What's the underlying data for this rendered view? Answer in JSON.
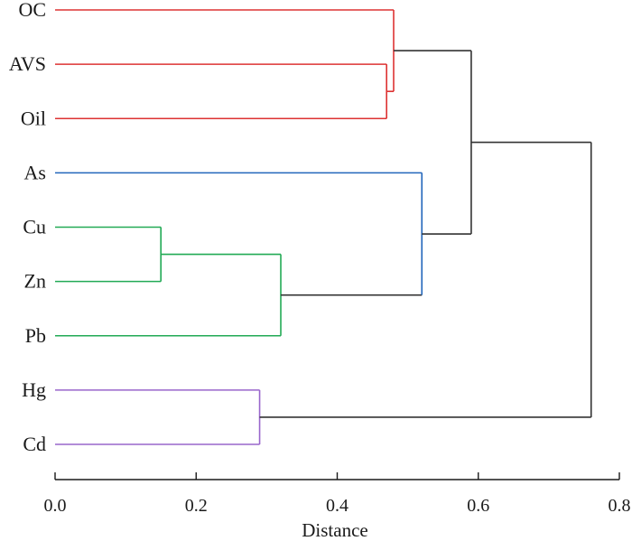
{
  "chart_data": {
    "type": "dendrogram",
    "orientation": "horizontal",
    "xlabel": "Distance",
    "xlim": [
      0.0,
      0.8
    ],
    "xticks": [
      0.0,
      0.2,
      0.4,
      0.6,
      0.8
    ],
    "xtick_labels": [
      "0.0",
      "0.2",
      "0.4",
      "0.6",
      "0.8"
    ],
    "leaves": [
      "OC",
      "AVS",
      "Oil",
      "As",
      "Cu",
      "Zn",
      "Pb",
      "Hg",
      "Cd"
    ],
    "clusters": [
      {
        "id": "c1",
        "children": [
          "Cu",
          "Zn"
        ],
        "distance": 0.15,
        "color": "#22aa55"
      },
      {
        "id": "c2",
        "children": [
          "c1",
          "Pb"
        ],
        "distance": 0.32,
        "color": "#22aa55"
      },
      {
        "id": "c3",
        "children": [
          "Hg",
          "Cd"
        ],
        "distance": 0.29,
        "color": "#9966cc"
      },
      {
        "id": "c4",
        "children": [
          "AVS",
          "Oil"
        ],
        "distance": 0.47,
        "color": "#dd3333"
      },
      {
        "id": "c5",
        "children": [
          "OC",
          "c4"
        ],
        "distance": 0.48,
        "color": "#dd3333"
      },
      {
        "id": "c6",
        "children": [
          "As",
          "c2"
        ],
        "distance": 0.52,
        "color": "#2266bb",
        "child_colors": [
          "#2266bb",
          "#333333"
        ]
      },
      {
        "id": "c7",
        "children": [
          "c5",
          "c6"
        ],
        "distance": 0.59,
        "color": "#333333"
      },
      {
        "id": "c8",
        "children": [
          "c7",
          "c3"
        ],
        "distance": 0.76,
        "color": "#333333"
      }
    ]
  }
}
